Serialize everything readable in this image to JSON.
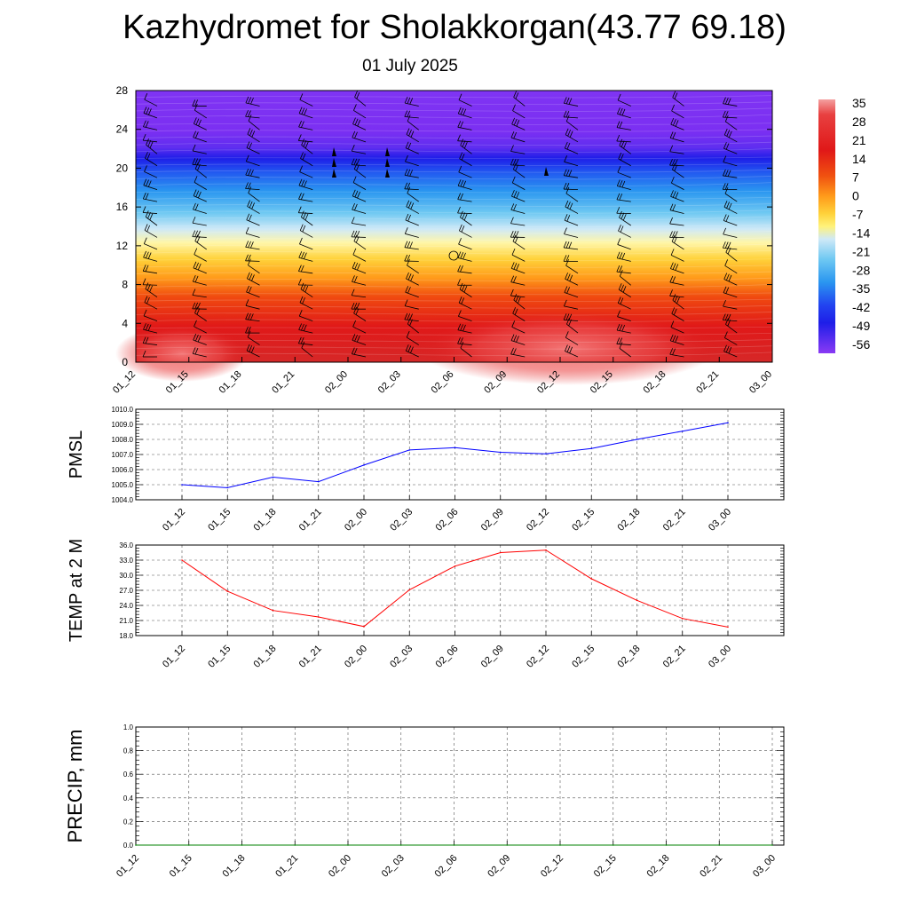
{
  "title": "Kazhydromet for Sholakkorgan(43.77 69.18)",
  "subtitle": "01 July 2025",
  "colors": {
    "pmsl_line": "#0000ff",
    "temp_line": "#ff0000",
    "precip_line": "#008000"
  },
  "chart_data": [
    {
      "type": "heatmap",
      "name": "vertical-section",
      "x_labels": [
        "01_12",
        "01_15",
        "01_18",
        "01_21",
        "02_00",
        "02_03",
        "02_06",
        "02_09",
        "02_12",
        "02_15",
        "02_18",
        "02_21",
        "03_00"
      ],
      "y_ticks": [
        "0",
        "4",
        "8",
        "12",
        "16",
        "20",
        "24",
        "28"
      ],
      "ylim": [
        0,
        28
      ],
      "colorbar_labels": [
        "35",
        "28",
        "21",
        "14",
        "7",
        "0",
        "-7",
        "-14",
        "-21",
        "-28",
        "-35",
        "-42",
        "-49",
        "-56"
      ],
      "colormap": "temperature contours, red (warm, low levels) to violet (cold, upper levels); wind barbs overlaid",
      "freezing_level_approx": 13.5
    },
    {
      "type": "line",
      "name": "pmsl",
      "ylabel": "PMSL",
      "x": [
        "01_12",
        "01_15",
        "01_18",
        "01_21",
        "02_00",
        "02_03",
        "02_06",
        "02_09",
        "02_12",
        "02_15",
        "02_18",
        "02_21",
        "03_00"
      ],
      "values": [
        1005.0,
        1004.8,
        1005.5,
        1005.2,
        1006.3,
        1007.3,
        1007.45,
        1007.15,
        1007.05,
        1007.4,
        1008.0,
        1008.55,
        1009.1
      ],
      "ylim": [
        1004.0,
        1010.0
      ],
      "y_ticks": [
        "1004.0",
        "1005.0",
        "1006.0",
        "1007.0",
        "1008.0",
        "1009.0",
        "1010.0"
      ],
      "grid": true
    },
    {
      "type": "line",
      "name": "temp2m",
      "ylabel": "TEMP at 2 M",
      "x": [
        "01_12",
        "01_15",
        "01_18",
        "01_21",
        "02_00",
        "02_03",
        "02_06",
        "02_09",
        "02_12",
        "02_15",
        "02_18",
        "02_21",
        "03_00"
      ],
      "values": [
        33.0,
        26.8,
        23.0,
        21.7,
        19.8,
        27.1,
        31.8,
        34.5,
        35.0,
        29.3,
        25.0,
        21.4,
        19.7
      ],
      "ylim": [
        18.0,
        36.0
      ],
      "y_ticks": [
        "18.0",
        "21.0",
        "24.0",
        "27.0",
        "30.0",
        "33.0",
        "36.0"
      ],
      "grid": true
    },
    {
      "type": "line",
      "name": "precip",
      "ylabel": "PRECIP, mm",
      "x": [
        "01_12",
        "01_15",
        "01_18",
        "01_21",
        "02_00",
        "02_03",
        "02_06",
        "02_09",
        "02_12",
        "02_15",
        "02_18",
        "02_21",
        "03_00"
      ],
      "values": [
        0,
        0,
        0,
        0,
        0,
        0,
        0,
        0,
        0,
        0,
        0,
        0,
        0
      ],
      "ylim": [
        0.0,
        1.0
      ],
      "y_ticks": [
        "0.0",
        "0.2",
        "0.4",
        "0.6",
        "0.8",
        "1.0"
      ],
      "grid": true
    }
  ]
}
